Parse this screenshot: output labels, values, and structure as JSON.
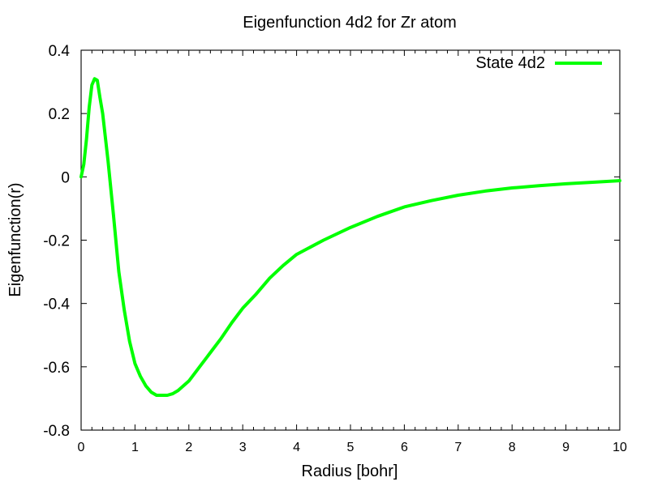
{
  "chart_data": {
    "type": "line",
    "title": "Eigenfunction 4d2 for Zr atom",
    "xlabel": "Radius [bohr]",
    "ylabel": "Eigenfunction(r)",
    "xlim": [
      0,
      10
    ],
    "ylim": [
      -0.8,
      0.4
    ],
    "x_ticks": [
      0,
      1,
      2,
      3,
      4,
      5,
      6,
      7,
      8,
      9,
      10
    ],
    "x_tick_labels": [
      "0",
      "1",
      "2",
      "3",
      "4",
      "5",
      "6",
      "7",
      "8",
      "9",
      "10"
    ],
    "y_ticks": [
      0.4,
      0.2,
      0,
      -0.2,
      -0.4,
      -0.6,
      -0.8
    ],
    "y_tick_labels": [
      "0.4",
      "0.2",
      "0",
      "-0.2",
      "-0.4",
      "-0.6",
      "-0.8"
    ],
    "grid": false,
    "legend": {
      "placement": "top-right",
      "entries": [
        {
          "name": "State 4d2",
          "color": "#00ff00"
        }
      ]
    },
    "series": [
      {
        "name": "State 4d2",
        "color": "#00ff00",
        "x": [
          0.0,
          0.05,
          0.1,
          0.15,
          0.2,
          0.25,
          0.3,
          0.35,
          0.4,
          0.5,
          0.6,
          0.7,
          0.8,
          0.9,
          1.0,
          1.1,
          1.2,
          1.3,
          1.4,
          1.5,
          1.6,
          1.7,
          1.8,
          1.9,
          2.0,
          2.2,
          2.4,
          2.6,
          2.8,
          3.0,
          3.25,
          3.5,
          3.75,
          4.0,
          4.5,
          5.0,
          5.5,
          6.0,
          6.5,
          7.0,
          7.5,
          8.0,
          8.5,
          9.0,
          9.5,
          10.0
        ],
        "y": [
          0.0,
          0.04,
          0.12,
          0.22,
          0.29,
          0.31,
          0.305,
          0.25,
          0.2,
          0.05,
          -0.12,
          -0.3,
          -0.42,
          -0.52,
          -0.59,
          -0.63,
          -0.66,
          -0.68,
          -0.69,
          -0.69,
          -0.69,
          -0.685,
          -0.675,
          -0.66,
          -0.645,
          -0.6,
          -0.555,
          -0.51,
          -0.46,
          -0.415,
          -0.37,
          -0.32,
          -0.28,
          -0.245,
          -0.2,
          -0.16,
          -0.125,
          -0.095,
          -0.075,
          -0.058,
          -0.045,
          -0.035,
          -0.028,
          -0.022,
          -0.017,
          -0.012
        ]
      }
    ]
  }
}
